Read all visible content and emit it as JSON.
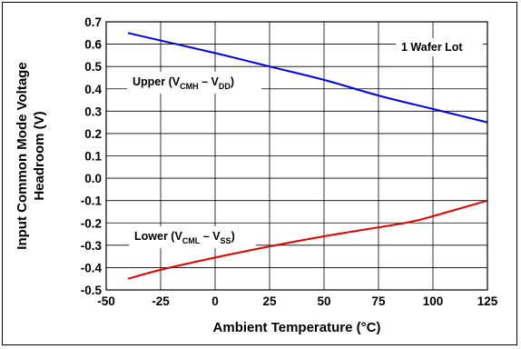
{
  "chart_data": {
    "type": "line",
    "xlabel": "Ambient Temperature (°C)",
    "ylabel": [
      "Input Common Mode Voltage",
      "Headroom (V)"
    ],
    "xlim": [
      -50,
      125
    ],
    "ylim": [
      -0.5,
      0.7
    ],
    "xticks": [
      "-50",
      "-25",
      "0",
      "25",
      "50",
      "75",
      "100",
      "125"
    ],
    "yticks": [
      "0.7",
      "0.6",
      "0.5",
      "0.4",
      "0.3",
      "0.2",
      "0.1",
      "0.0",
      "-0.1",
      "-0.2",
      "-0.3",
      "-0.4",
      "-0.5"
    ],
    "grid": true,
    "annotation": "1 Wafer Lot",
    "series": [
      {
        "name": "Upper (VCMH – VDD)",
        "label_main": "Upper (V",
        "label_sub1": "CMH",
        "label_mid": " – V",
        "label_sub2": "DD",
        "label_end": ")",
        "color": "#0000dd",
        "points": [
          [
            -40,
            0.65
          ],
          [
            0,
            0.56
          ],
          [
            25,
            0.5
          ],
          [
            50,
            0.44
          ],
          [
            75,
            0.37
          ],
          [
            100,
            0.31
          ],
          [
            125,
            0.25
          ]
        ]
      },
      {
        "name": "Lower (VCML – VSS)",
        "label_main": "Lower (V",
        "label_sub1": "CML",
        "label_mid": " – V",
        "label_sub2": "SS",
        "label_end": ")",
        "color": "#dd0000",
        "points": [
          [
            -40,
            -0.45
          ],
          [
            -25,
            -0.41
          ],
          [
            0,
            -0.355
          ],
          [
            25,
            -0.305
          ],
          [
            50,
            -0.26
          ],
          [
            75,
            -0.22
          ],
          [
            90,
            -0.195
          ],
          [
            100,
            -0.17
          ],
          [
            125,
            -0.1
          ]
        ]
      }
    ]
  }
}
